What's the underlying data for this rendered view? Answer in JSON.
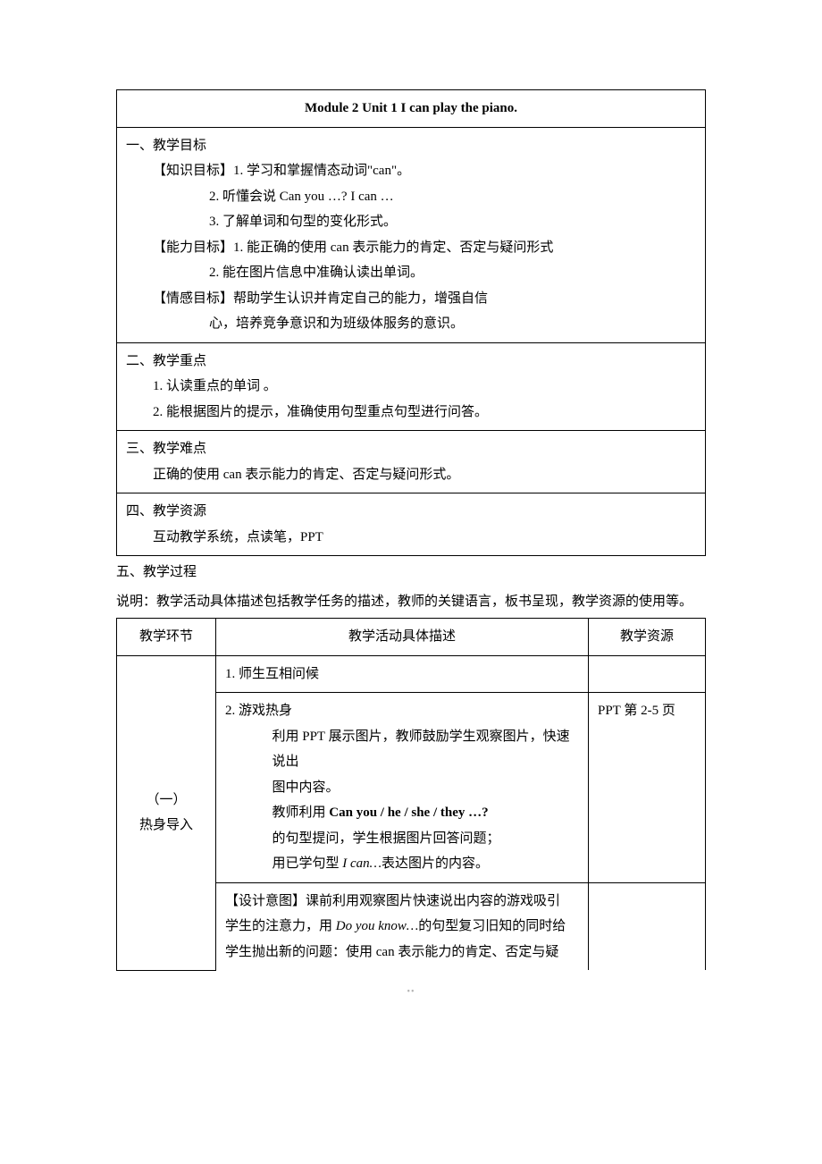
{
  "title": "Module 2    Unit 1    I can play the piano.",
  "sec1": {
    "head": "一、教学目标",
    "k_label": "【知识目标】",
    "k1": "1. 学习和掌握情态动词\"can\"。",
    "k2": "2. 听懂会说 Can you …?    I can …",
    "k3": "3. 了解单词和句型的变化形式。",
    "a_label": "【能力目标】",
    "a1": "1. 能正确的使用 can 表示能力的肯定、否定与疑问形式",
    "a2": "2. 能在图片信息中准确认读出单词。",
    "e_label": "【情感目标】",
    "e1": "帮助学生认识并肯定自己的能力，增强自信",
    "e2": "心，培养竞争意识和为班级体服务的意识。"
  },
  "sec2": {
    "head": "二、教学重点",
    "i1": "1. 认读重点的单词 。",
    "i2": "2. 能根据图片的提示，准确使用句型重点句型进行问答。"
  },
  "sec3": {
    "head": "三、教学难点",
    "i1": "正确的使用 can 表示能力的肯定、否定与疑问形式。"
  },
  "sec4": {
    "head": "四、教学资源",
    "i1": "互动教学系统，点读笔，PPT"
  },
  "sec5": {
    "head": "五、教学过程",
    "note": "说明：教学活动具体描述包括教学任务的描述，教师的关键语言，板书呈现，教学资源的使用等。"
  },
  "table2": {
    "h1": "教学环节",
    "h2": "教学活动具体描述",
    "h3": "教学资源",
    "r1_left_a": "（一）",
    "r1_left_b": "热身导入",
    "r1_mid_1": "1.    师生互相问候",
    "r1_mid_2": "2.    游戏热身",
    "r1_mid_3a": "利用 PPT 展示图片，教师鼓励学生观察图片，快速说出",
    "r1_mid_3b": "图中内容。",
    "r1_mid_4a": "教师利用 ",
    "r1_mid_4b": "Can you / he / she / they …?",
    "r1_mid_5": "的句型提问，学生根据图片回答问题；",
    "r1_mid_6a": "用已学句型 ",
    "r1_mid_6b": "I can…",
    "r1_mid_6c": "表达图片的内容。",
    "r1_mid_7a": "【设计意图】课前利用观察图片快速说出内容的游戏吸引",
    "r1_mid_7b": "学生的注意力，用 ",
    "r1_mid_7c": "Do you know…",
    "r1_mid_7d": "的句型复习旧知的同时给",
    "r1_mid_7e": "学生抛出新的问题：使用 can 表示能力的肯定、否定与疑",
    "r1_right": "PPT 第 2-5 页"
  },
  "footer": "••"
}
